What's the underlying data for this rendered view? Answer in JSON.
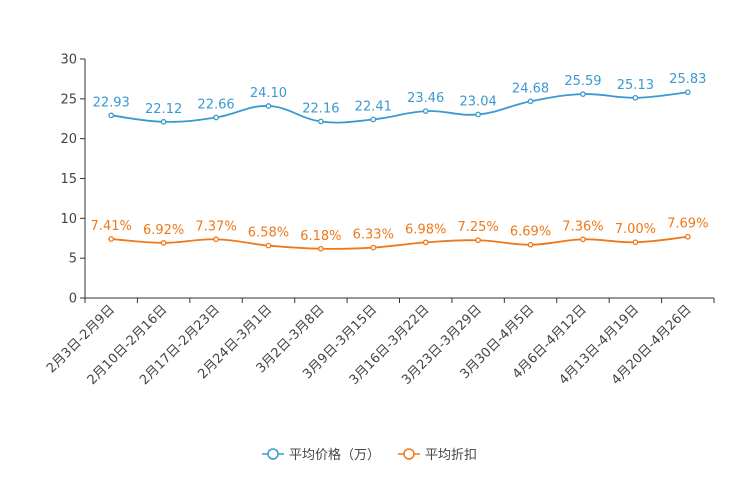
{
  "chart_data": {
    "type": "line",
    "categories": [
      "2月3日-2月9日",
      "2月10日-2月16日",
      "2月17日-2月23日",
      "2月24日-3月1日",
      "3月2日-3月8日",
      "3月9日-3月15日",
      "3月16日-3月22日",
      "3月23日-3月29日",
      "3月30日-4月5日",
      "4月6日-4月12日",
      "4月13日-4月19日",
      "4月20日-4月26日"
    ],
    "ylim": [
      0,
      30
    ],
    "yticks": [
      0,
      5,
      10,
      15,
      20,
      25,
      30
    ],
    "ytick_labels": [
      "0",
      "5",
      "10",
      "15",
      "20",
      "25",
      "30"
    ],
    "series": [
      {
        "name": "平均价格（万）",
        "color": "#3a9ad0",
        "values": [
          22.93,
          22.12,
          22.66,
          24.1,
          22.16,
          22.41,
          23.46,
          23.04,
          24.68,
          25.59,
          25.13,
          25.83
        ],
        "labels": [
          "22.93",
          "22.12",
          "22.66",
          "24.10",
          "22.16",
          "22.41",
          "23.46",
          "23.04",
          "24.68",
          "25.59",
          "25.13",
          "25.83"
        ]
      },
      {
        "name": "平均折扣",
        "color": "#f07818",
        "values": [
          7.41,
          6.92,
          7.37,
          6.58,
          6.18,
          6.33,
          6.98,
          7.25,
          6.69,
          7.36,
          7.0,
          7.69
        ],
        "labels": [
          "7.41%",
          "6.92%",
          "7.37%",
          "6.58%",
          "6.18%",
          "6.33%",
          "6.98%",
          "7.25%",
          "6.69%",
          "7.36%",
          "7.00%",
          "7.69%"
        ]
      }
    ],
    "legend": "bottom-center"
  }
}
